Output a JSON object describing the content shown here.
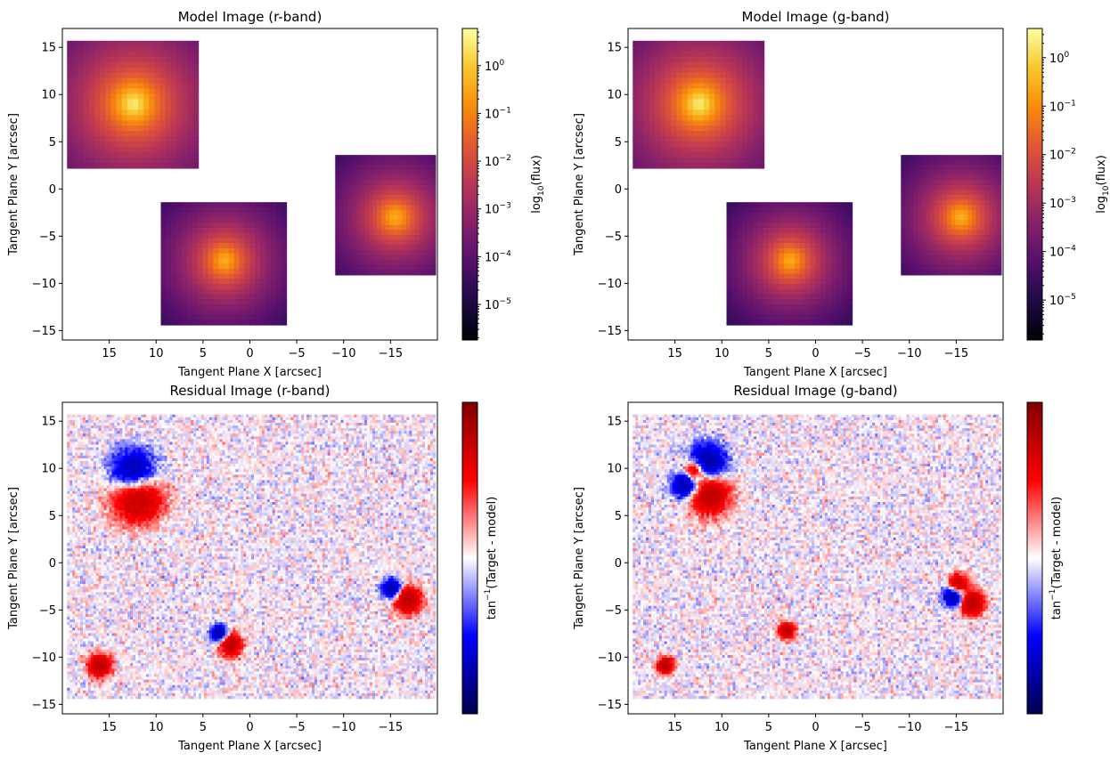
{
  "chart_data": [
    {
      "type": "heatmap",
      "title": "Model Image (r-band)",
      "xlabel": "Tangent Plane X [arcsec]",
      "ylabel": "Tangent Plane Y [arcsec]",
      "xlim": [
        20,
        -20
      ],
      "ylim": [
        -16,
        17
      ],
      "xticks": [
        15,
        10,
        5,
        0,
        -5,
        -10,
        -15
      ],
      "yticks": [
        15,
        10,
        5,
        0,
        -5,
        -10,
        -15
      ],
      "colorbar": {
        "label": "log10(flux)",
        "scale": "log",
        "colormap": "inferno",
        "ticks": [
          1,
          0.1,
          0.01,
          0.001,
          0.0001,
          1e-05
        ],
        "tick_labels": [
          "10^0",
          "10^-1",
          "10^-2",
          "10^-3",
          "10^-4",
          "10^-5"
        ],
        "range": [
          1.8e-06,
          6
        ]
      },
      "sources": [
        {
          "x": 12.4,
          "y": 9.0,
          "box": [
            19.5,
            5.5,
            2.2,
            15.7
          ],
          "peak": 3.0
        },
        {
          "x": 2.7,
          "y": -7.6,
          "box": [
            9.5,
            -3.9,
            -14.4,
            -1.4
          ],
          "peak": 0.4
        },
        {
          "x": -15.5,
          "y": -3.0,
          "box": [
            -9.1,
            -19.8,
            -9.1,
            3.6
          ],
          "peak": 0.4
        }
      ]
    },
    {
      "type": "heatmap",
      "title": "Model Image (g-band)",
      "xlabel": "Tangent Plane X [arcsec]",
      "ylabel": "Tangent Plane Y [arcsec]",
      "xlim": [
        20,
        -20
      ],
      "ylim": [
        -16,
        17
      ],
      "xticks": [
        15,
        10,
        5,
        0,
        -5,
        -10,
        -15
      ],
      "yticks": [
        15,
        10,
        5,
        0,
        -5,
        -10,
        -15
      ],
      "colorbar": {
        "label": "log10(flux)",
        "scale": "log",
        "colormap": "inferno",
        "ticks": [
          1,
          0.1,
          0.01,
          0.001,
          0.0001,
          1e-05
        ],
        "tick_labels": [
          "10^0",
          "10^-1",
          "10^-2",
          "10^-3",
          "10^-4",
          "10^-5"
        ],
        "range": [
          1.5e-06,
          4
        ]
      },
      "sources": [
        {
          "x": 12.4,
          "y": 9.0,
          "box": [
            19.5,
            5.5,
            2.2,
            15.7
          ],
          "peak": 2.0
        },
        {
          "x": 2.7,
          "y": -7.6,
          "box": [
            9.5,
            -3.9,
            -14.4,
            -1.4
          ],
          "peak": 0.25
        },
        {
          "x": -15.5,
          "y": -3.0,
          "box": [
            -9.1,
            -19.8,
            -9.1,
            3.6
          ],
          "peak": 0.3
        }
      ]
    },
    {
      "type": "heatmap",
      "title": "Residual Image (r-band)",
      "xlabel": "Tangent Plane X [arcsec]",
      "ylabel": "Tangent Plane Y [arcsec]",
      "xlim": [
        20,
        -20
      ],
      "ylim": [
        -16,
        17
      ],
      "xticks": [
        15,
        10,
        5,
        0,
        -5,
        -10,
        -15
      ],
      "yticks": [
        15,
        10,
        5,
        0,
        -5,
        -10,
        -15
      ],
      "colorbar": {
        "label": "tan^-1(Target - model)",
        "colormap": "seismic"
      },
      "features": [
        {
          "x": 12.4,
          "y": 9.5,
          "sign": -1,
          "size": 1.6
        },
        {
          "x": 12.0,
          "y": 7.0,
          "sign": 1,
          "size": 1.8
        },
        {
          "x": 3.3,
          "y": -7.5,
          "sign": -1,
          "size": 0.6
        },
        {
          "x": 2.0,
          "y": -8.7,
          "sign": 1,
          "size": 0.8
        },
        {
          "x": -15.2,
          "y": -2.8,
          "sign": -1,
          "size": 0.7
        },
        {
          "x": -16.8,
          "y": -3.9,
          "sign": 1,
          "size": 1.0
        },
        {
          "x": 16.0,
          "y": -10.9,
          "sign": 1,
          "size": 0.8
        }
      ]
    },
    {
      "type": "heatmap",
      "title": "Residual Image (g-band)",
      "xlabel": "Tangent Plane X [arcsec]",
      "ylabel": "Tangent Plane Y [arcsec]",
      "xlim": [
        20,
        -20
      ],
      "ylim": [
        -16,
        17
      ],
      "xticks": [
        15,
        10,
        5,
        0,
        -5,
        -10,
        -15
      ],
      "yticks": [
        15,
        10,
        5,
        0,
        -5,
        -10,
        -15
      ],
      "colorbar": {
        "label": "tan^-1(Target - model)",
        "colormap": "seismic"
      },
      "features": [
        {
          "x": 13.0,
          "y": 9.8,
          "sign": 1,
          "size": 0.8
        },
        {
          "x": 11.6,
          "y": 10.5,
          "sign": -1,
          "size": 1.4
        },
        {
          "x": 13.8,
          "y": 8.2,
          "sign": -1,
          "size": 1.0
        },
        {
          "x": 11.4,
          "y": 7.4,
          "sign": 1,
          "size": 1.5
        },
        {
          "x": 3.1,
          "y": -7.2,
          "sign": 1,
          "size": 0.6
        },
        {
          "x": -15.2,
          "y": -2.3,
          "sign": 1,
          "size": 0.7
        },
        {
          "x": -14.8,
          "y": -3.5,
          "sign": -1,
          "size": 0.8
        },
        {
          "x": -16.6,
          "y": -4.3,
          "sign": 1,
          "size": 0.9
        },
        {
          "x": 16.0,
          "y": -10.9,
          "sign": 1,
          "size": 0.6
        }
      ]
    }
  ]
}
